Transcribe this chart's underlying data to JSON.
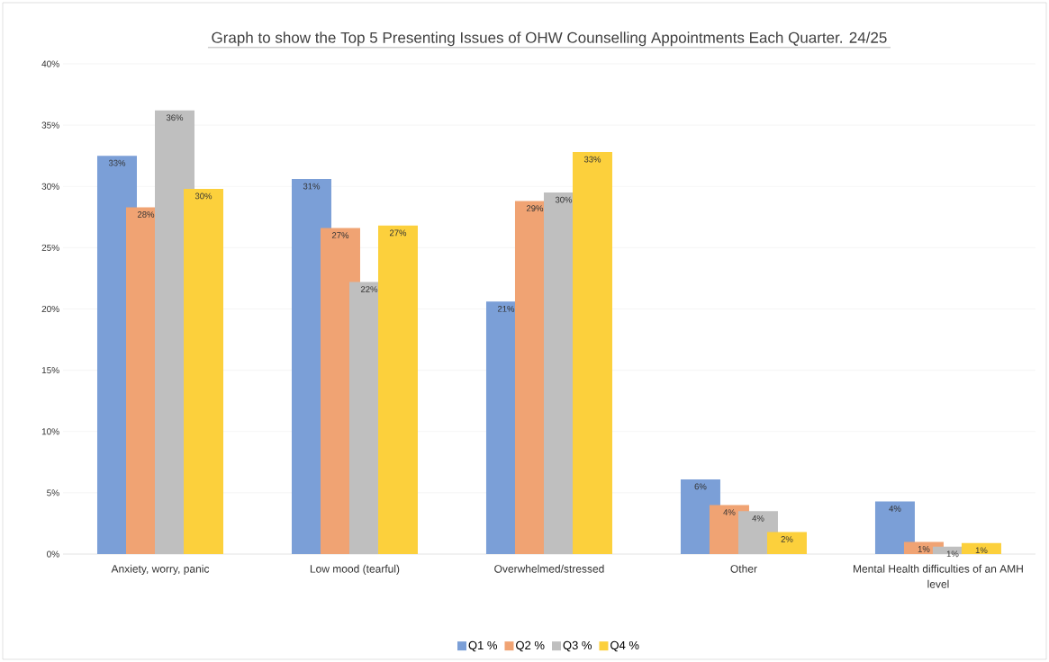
{
  "chart_data": {
    "type": "bar",
    "title": "Graph to show the Top 5 Presenting Issues of OHW Counselling Appointments Each Quarter.  24/25",
    "categories": [
      "Anxiety, worry, panic",
      "Low mood (tearful)",
      "Overwhelmed/stressed",
      "Other",
      "Mental Health difficulties of an AMH level"
    ],
    "series": [
      {
        "name": "Q1 %",
        "color": "#7b9fd7",
        "values": [
          32.5,
          30.6,
          20.6,
          6.1,
          4.3
        ],
        "value_labels": [
          "33%",
          "31%",
          "21%",
          "6%",
          "4%"
        ]
      },
      {
        "name": "Q2 %",
        "color": "#f0a373",
        "values": [
          28.3,
          26.6,
          28.8,
          4.0,
          1.0
        ],
        "value_labels": [
          "28%",
          "27%",
          "29%",
          "4%",
          "1%"
        ]
      },
      {
        "name": "Q3 %",
        "color": "#bfbfbf",
        "values": [
          36.2,
          22.2,
          29.5,
          3.5,
          0.6
        ],
        "value_labels": [
          "36%",
          "22%",
          "30%",
          "4%",
          "1%"
        ]
      },
      {
        "name": "Q4 %",
        "color": "#fcd03c",
        "values": [
          29.8,
          26.8,
          32.8,
          1.8,
          0.9
        ],
        "value_labels": [
          "30%",
          "27%",
          "33%",
          "2%",
          "1%"
        ]
      }
    ],
    "ylim": [
      0,
      40
    ],
    "yticks": [
      {
        "value": 0,
        "label": "0%"
      },
      {
        "value": 5,
        "label": "5%"
      },
      {
        "value": 10,
        "label": "10%"
      },
      {
        "value": 15,
        "label": "15%"
      },
      {
        "value": 20,
        "label": "20%"
      },
      {
        "value": 25,
        "label": "25%"
      },
      {
        "value": 30,
        "label": "30%"
      },
      {
        "value": 35,
        "label": "35%"
      },
      {
        "value": 40,
        "label": "40%"
      }
    ],
    "grid": "y",
    "legend": "bottom"
  }
}
